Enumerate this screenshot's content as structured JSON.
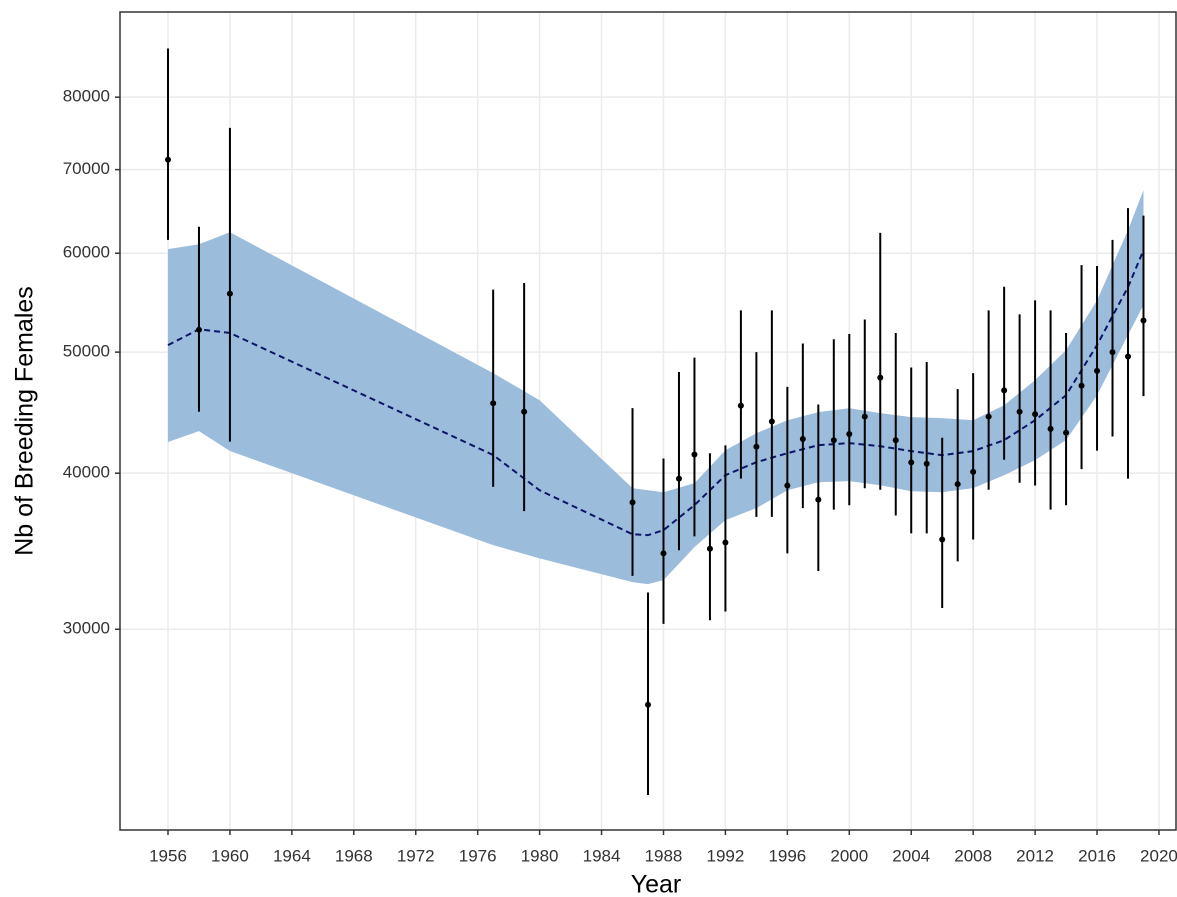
{
  "chart_data": {
    "type": "errorbar",
    "xlabel": "Year",
    "ylabel": "Nb of Breeding Females",
    "yscale": "log",
    "grid": true,
    "xlim": [
      1952.9,
      2021.1
    ],
    "ylim": [
      20720,
      93600
    ],
    "xticks": [
      1956,
      1960,
      1964,
      1968,
      1972,
      1976,
      1980,
      1984,
      1988,
      1992,
      1996,
      2000,
      2004,
      2008,
      2012,
      2016,
      2020
    ],
    "yticks": [
      30000,
      40000,
      50000,
      60000,
      70000,
      80000
    ],
    "color": "#000000",
    "x": [
      1956,
      1958,
      1960,
      1977,
      1979,
      1986,
      1987,
      1988,
      1989,
      1990,
      1991,
      1992,
      1993,
      1994,
      1995,
      1996,
      1997,
      1998,
      1999,
      2000,
      2001,
      2002,
      2003,
      2004,
      2005,
      2006,
      2007,
      2008,
      2009,
      2010,
      2011,
      2012,
      2013,
      2014,
      2015,
      2016,
      2017,
      2018,
      2019
    ],
    "values": [
      71300,
      52100,
      55700,
      45500,
      44800,
      37900,
      26100,
      34500,
      39600,
      41400,
      34800,
      35200,
      45300,
      42000,
      44000,
      39100,
      42600,
      38100,
      42500,
      43000,
      44400,
      47700,
      42500,
      40800,
      40700,
      35400,
      39200,
      40100,
      44400,
      46600,
      44800,
      44600,
      43400,
      43100,
      47000,
      48300,
      50000,
      49600,
      53000
    ],
    "lower": [
      61500,
      44800,
      42400,
      39000,
      37300,
      33100,
      22100,
      30300,
      34700,
      35600,
      30500,
      31000,
      39600,
      36900,
      36900,
      34500,
      37500,
      33400,
      37400,
      37700,
      38900,
      38800,
      37000,
      35800,
      35800,
      31200,
      34000,
      35400,
      38800,
      41000,
      39300,
      39100,
      37400,
      37700,
      40300,
      41700,
      42800,
      39600,
      46100
    ],
    "upper": [
      87500,
      63000,
      75600,
      56100,
      56800,
      45100,
      32100,
      41100,
      48200,
      49500,
      41500,
      42100,
      54000,
      50000,
      54000,
      46900,
      50800,
      45400,
      51200,
      51700,
      53100,
      62300,
      51800,
      48600,
      49100,
      42700,
      46700,
      48100,
      54000,
      56400,
      53600,
      55000,
      54000,
      51800,
      58700,
      58600,
      61500,
      65200,
      64300
    ],
    "fit": {
      "color": "#9cbcdc",
      "line_color": "#0d1566",
      "x": [
        1956,
        1958,
        1960,
        1977,
        1980,
        1986,
        1987,
        1988,
        1990,
        1992,
        1994,
        1996,
        1998,
        2000,
        2002,
        2004,
        2006,
        2008,
        2010,
        2012,
        2014,
        2016,
        2018,
        2019
      ],
      "values": [
        50650,
        52150,
        51800,
        41360,
        38760,
        35740,
        35680,
        36010,
        37710,
        39850,
        40820,
        41500,
        42120,
        42280,
        42040,
        41660,
        41350,
        41660,
        42510,
        44100,
        46180,
        50660,
        56360,
        60340
      ],
      "lower": [
        42370,
        43220,
        41670,
        35030,
        34190,
        32720,
        32600,
        32840,
        34900,
        36680,
        37500,
        38760,
        39340,
        39420,
        39120,
        38690,
        38620,
        38910,
        39850,
        40970,
        42510,
        46180,
        51600,
        54520
      ],
      "upper": [
        60450,
        61000,
        62370,
        48100,
        45760,
        38910,
        38760,
        38620,
        39270,
        41730,
        43060,
        44100,
        44760,
        45090,
        44680,
        44350,
        44270,
        44100,
        45340,
        47480,
        50190,
        55010,
        62610,
        67390
      ]
    }
  }
}
